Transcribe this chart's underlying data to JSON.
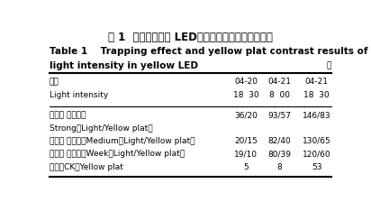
{
  "title_cn": "表 1  不同光强黄色 LED误杀效果以及黄板对照结果",
  "title_en_line1": "Table 1    Trapping effect and yellow plat contrast results of different",
  "title_en_line2": "light intensity in yellow LED",
  "unit_label": "头",
  "rows": [
    {
      "label": "光强",
      "col1": "04-20",
      "col2": "04-21",
      "col3": "04-21"
    },
    {
      "label": "Light intensity",
      "col1": "18  30",
      "col2": "8  00",
      "col3": "18  30"
    },
    {
      "label": "强（灯 ／黄板）",
      "col1": "36/20",
      "col2": "93/57",
      "col3": "146/83"
    },
    {
      "label": "Strong（Light/Yellow plat）",
      "col1": "",
      "col2": "",
      "col3": ""
    },
    {
      "label": "中（灯 ／黄板）Medium（Light/Yellow plat）",
      "col1": "20/15",
      "col2": "82/40",
      "col3": "130/65"
    },
    {
      "label": "弱（灯 ／黄板）Week（Light/Yellow plat）",
      "col1": "19/10",
      "col2": "80/39",
      "col3": "120/60"
    },
    {
      "label": "黄板（CK）Yellow plat",
      "col1": "5",
      "col2": "8",
      "col3": "53"
    }
  ],
  "bg_color": "#ffffff",
  "text_color": "#000000",
  "lw_thick": 1.5,
  "lw_thin": 0.8,
  "fs_cn_title": 8.5,
  "fs_en_title": 7.5,
  "fs_table": 6.5
}
